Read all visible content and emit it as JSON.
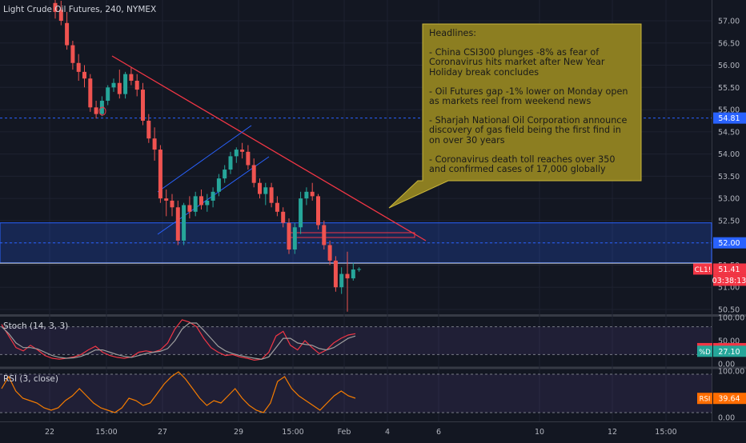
{
  "chart_data": [
    {
      "type": "candlestick",
      "title": "Light Crude Oil Futures, 240, NYMEX",
      "y_ticks": [
        50.5,
        51.0,
        51.5,
        52.0,
        52.5,
        53.0,
        53.5,
        54.0,
        54.5,
        55.0,
        55.5,
        56.0,
        56.5,
        57.0
      ],
      "y_tick_labels": [
        "50.50",
        "51.00",
        "51.50",
        "52.00",
        "52.50",
        "53.00",
        "53.50",
        "54.00",
        "54.50",
        "55.00",
        "55.50",
        "56.00",
        "56.50",
        "57.00"
      ],
      "ylim": [
        50.3,
        57.4
      ],
      "x_tick_labels": [
        "22",
        "15:00",
        "27",
        "29",
        "15:00",
        "Feb",
        "4",
        "6",
        "10",
        "12",
        "15:00"
      ],
      "candles": [
        {
          "o": 57.4,
          "h": 57.5,
          "l": 57.05,
          "c": 57.2
        },
        {
          "o": 57.25,
          "h": 57.45,
          "l": 56.9,
          "c": 57.0
        },
        {
          "o": 56.95,
          "h": 57.2,
          "l": 56.35,
          "c": 56.45
        },
        {
          "o": 56.45,
          "h": 56.55,
          "l": 55.9,
          "c": 56.05
        },
        {
          "o": 56.05,
          "h": 56.25,
          "l": 55.65,
          "c": 55.85
        },
        {
          "o": 55.85,
          "h": 56.0,
          "l": 55.5,
          "c": 55.7
        },
        {
          "o": 55.7,
          "h": 55.8,
          "l": 54.95,
          "c": 55.05
        },
        {
          "o": 55.05,
          "h": 55.2,
          "l": 54.8,
          "c": 54.9
        },
        {
          "o": 54.9,
          "h": 55.3,
          "l": 54.85,
          "c": 55.2
        },
        {
          "o": 55.2,
          "h": 55.55,
          "l": 55.1,
          "c": 55.5
        },
        {
          "o": 55.5,
          "h": 55.7,
          "l": 55.4,
          "c": 55.6
        },
        {
          "o": 55.6,
          "h": 55.9,
          "l": 55.25,
          "c": 55.35
        },
        {
          "o": 55.35,
          "h": 55.85,
          "l": 55.25,
          "c": 55.8
        },
        {
          "o": 55.8,
          "h": 55.95,
          "l": 55.55,
          "c": 55.65
        },
        {
          "o": 55.65,
          "h": 55.8,
          "l": 55.3,
          "c": 55.45
        },
        {
          "o": 55.45,
          "h": 55.6,
          "l": 54.65,
          "c": 54.75
        },
        {
          "o": 54.75,
          "h": 54.9,
          "l": 54.25,
          "c": 54.35
        },
        {
          "o": 54.35,
          "h": 54.6,
          "l": 53.85,
          "c": 54.1
        },
        {
          "o": 54.1,
          "h": 54.2,
          "l": 52.9,
          "c": 53.0
        },
        {
          "o": 53.0,
          "h": 53.2,
          "l": 52.6,
          "c": 52.95
        },
        {
          "o": 52.95,
          "h": 53.1,
          "l": 52.6,
          "c": 52.8
        },
        {
          "o": 52.8,
          "h": 52.95,
          "l": 51.95,
          "c": 52.05
        },
        {
          "o": 52.05,
          "h": 52.9,
          "l": 51.95,
          "c": 52.85
        },
        {
          "o": 52.85,
          "h": 53.05,
          "l": 52.55,
          "c": 52.7
        },
        {
          "o": 52.7,
          "h": 53.15,
          "l": 52.6,
          "c": 53.05
        },
        {
          "o": 53.05,
          "h": 53.2,
          "l": 52.75,
          "c": 52.85
        },
        {
          "o": 52.85,
          "h": 53.1,
          "l": 52.7,
          "c": 52.95
        },
        {
          "o": 52.95,
          "h": 53.25,
          "l": 52.8,
          "c": 53.15
        },
        {
          "o": 53.15,
          "h": 53.55,
          "l": 53.05,
          "c": 53.45
        },
        {
          "o": 53.45,
          "h": 53.75,
          "l": 53.35,
          "c": 53.65
        },
        {
          "o": 53.65,
          "h": 54.05,
          "l": 53.55,
          "c": 53.95
        },
        {
          "o": 53.95,
          "h": 54.15,
          "l": 53.8,
          "c": 54.1
        },
        {
          "o": 54.1,
          "h": 54.25,
          "l": 53.9,
          "c": 54.05
        },
        {
          "o": 54.05,
          "h": 54.2,
          "l": 53.65,
          "c": 53.75
        },
        {
          "o": 53.75,
          "h": 53.9,
          "l": 53.25,
          "c": 53.35
        },
        {
          "o": 53.35,
          "h": 53.45,
          "l": 53.0,
          "c": 53.1
        },
        {
          "o": 53.1,
          "h": 53.35,
          "l": 52.85,
          "c": 53.25
        },
        {
          "o": 53.25,
          "h": 53.35,
          "l": 52.8,
          "c": 52.9
        },
        {
          "o": 52.9,
          "h": 53.05,
          "l": 52.6,
          "c": 52.7
        },
        {
          "o": 52.7,
          "h": 52.8,
          "l": 52.35,
          "c": 52.45
        },
        {
          "o": 52.45,
          "h": 52.55,
          "l": 51.75,
          "c": 51.85
        },
        {
          "o": 51.85,
          "h": 52.45,
          "l": 51.75,
          "c": 52.35
        },
        {
          "o": 52.35,
          "h": 53.15,
          "l": 52.2,
          "c": 53.0
        },
        {
          "o": 53.0,
          "h": 53.25,
          "l": 52.85,
          "c": 53.15
        },
        {
          "o": 53.15,
          "h": 53.35,
          "l": 52.95,
          "c": 53.05
        },
        {
          "o": 53.05,
          "h": 53.1,
          "l": 52.3,
          "c": 52.4
        },
        {
          "o": 52.4,
          "h": 52.5,
          "l": 51.85,
          "c": 51.95
        },
        {
          "o": 51.95,
          "h": 52.05,
          "l": 51.5,
          "c": 51.6
        },
        {
          "o": 51.6,
          "h": 51.7,
          "l": 50.9,
          "c": 51.0
        },
        {
          "o": 51.0,
          "h": 51.45,
          "l": 50.85,
          "c": 51.3
        },
        {
          "o": 51.3,
          "h": 51.8,
          "l": 50.45,
          "c": 51.2
        },
        {
          "o": 51.2,
          "h": 51.55,
          "l": 51.15,
          "c": 51.4
        },
        {
          "o": 51.4,
          "h": 51.45,
          "l": 51.35,
          "c": 51.41
        }
      ],
      "price_labels": [
        {
          "text": "54.81",
          "value": 54.81,
          "color": "#2962ff"
        },
        {
          "text": "52.00",
          "value": 52.0,
          "color": "#2962ff"
        },
        {
          "text": "51.41",
          "value": 51.41,
          "color": "#f23645"
        }
      ],
      "countdown_label": "03:38:13",
      "symbol_tag": "CL1!",
      "up_color": "#26a69a",
      "down_color": "#ef5350"
    },
    {
      "type": "line",
      "title": "Stoch (14, 3, 3)",
      "y_tick_labels": [
        "100.00",
        "50.00",
        "0.00"
      ],
      "ylim": [
        0,
        100
      ],
      "series": [
        {
          "name": "%K",
          "color": "#f23645",
          "values": [
            85,
            60,
            35,
            28,
            40,
            30,
            18,
            12,
            10,
            12,
            15,
            20,
            30,
            38,
            25,
            18,
            14,
            12,
            15,
            25,
            28,
            25,
            30,
            45,
            75,
            95,
            90,
            80,
            55,
            35,
            25,
            18,
            20,
            15,
            12,
            8,
            10,
            25,
            60,
            70,
            40,
            30,
            50,
            35,
            22,
            30,
            45,
            55,
            62,
            65
          ]
        },
        {
          "name": "%D",
          "color": "#9e9e9e",
          "values": [
            80,
            65,
            45,
            35,
            35,
            32,
            25,
            18,
            14,
            12,
            13,
            16,
            22,
            30,
            30,
            25,
            20,
            16,
            14,
            18,
            22,
            25,
            27,
            33,
            50,
            75,
            88,
            88,
            72,
            55,
            38,
            28,
            22,
            18,
            15,
            12,
            10,
            15,
            35,
            55,
            55,
            45,
            42,
            40,
            33,
            30,
            35,
            45,
            55,
            60
          ]
        }
      ],
      "value_labels": [
        {
          "text": "32.85",
          "name": "%K",
          "value": 32.85,
          "color": "#f23645"
        },
        {
          "text": "27.10",
          "name": "%D",
          "value": 27.1,
          "color": "#26a69a"
        }
      ]
    },
    {
      "type": "line",
      "title": "RSI (3, close)",
      "y_tick_labels": [
        "100.00",
        "0.00"
      ],
      "ylim": [
        0,
        100
      ],
      "series": [
        {
          "name": "RSI",
          "color": "#f57c00",
          "values": [
            60,
            85,
            55,
            40,
            35,
            30,
            20,
            15,
            20,
            35,
            45,
            60,
            45,
            30,
            20,
            15,
            10,
            20,
            40,
            35,
            25,
            30,
            50,
            70,
            85,
            95,
            80,
            60,
            40,
            25,
            35,
            30,
            45,
            60,
            40,
            25,
            15,
            10,
            30,
            75,
            85,
            60,
            45,
            35,
            25,
            15,
            30,
            45,
            55,
            45,
            40
          ]
        }
      ],
      "value_labels": [
        {
          "text": "39.64",
          "name": "RSI",
          "value": 39.64,
          "color": "#ff6d00"
        }
      ]
    }
  ],
  "headlines": {
    "heading": "Headlines:",
    "items": [
      "- China CSI300 plunges -8% as fear of Coronavirus hits market after New Year Holiday break concludes",
      "- Oil Futures gap -1% lower on Monday open as markets reel from weekend news",
      "- Sharjah National Oil Corporation announce discovery of gas field being the first find in on over 30 years",
      "- Coronavirus death toll reaches over 350 and confirmed cases of 17,000 globally"
    ],
    "fill_color": "#8c7e21",
    "border_color": "#c9b53a"
  }
}
